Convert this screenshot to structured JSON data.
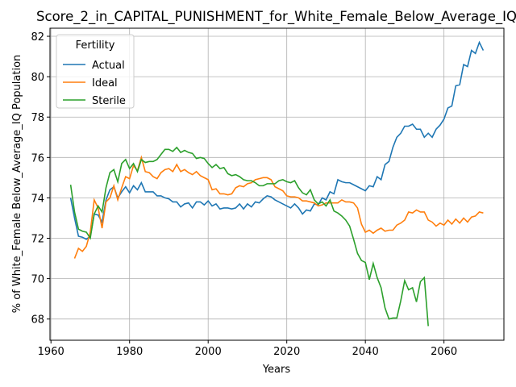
{
  "chart_data": {
    "type": "line",
    "title": "Score_2_in_CAPITAL_PUNISHMENT_for_White_Female_Below_Average_IQ",
    "xlabel": "Years",
    "ylabel": "% of White_Female Below_Average_IQ Population",
    "legend_title": "Fertility",
    "legend": "upper left",
    "grid": true,
    "xlim": [
      1959.75,
      2075.25
    ],
    "ylim": [
      66.95,
      82.4
    ],
    "xticks": [
      1960,
      1980,
      2000,
      2020,
      2040,
      2060
    ],
    "yticks": [
      68,
      70,
      72,
      74,
      76,
      78,
      80,
      82
    ],
    "x": [
      1965,
      1966,
      1967,
      1968,
      1969,
      1970,
      1971,
      1972,
      1973,
      1974,
      1975,
      1976,
      1977,
      1978,
      1979,
      1980,
      1981,
      1982,
      1983,
      1984,
      1985,
      1986,
      1987,
      1988,
      1989,
      1990,
      1991,
      1992,
      1993,
      1994,
      1995,
      1996,
      1997,
      1998,
      1999,
      2000,
      2001,
      2002,
      2003,
      2004,
      2005,
      2006,
      2007,
      2008,
      2009,
      2010,
      2011,
      2012,
      2013,
      2014,
      2015,
      2016,
      2017,
      2018,
      2019,
      2020,
      2021,
      2022,
      2023,
      2024,
      2025,
      2026,
      2027,
      2028,
      2029,
      2030,
      2031,
      2032,
      2033,
      2034,
      2035,
      2036,
      2037,
      2038,
      2039,
      2040,
      2041,
      2042,
      2043,
      2044,
      2045,
      2046,
      2047,
      2048,
      2049,
      2050,
      2051,
      2052,
      2053,
      2054,
      2055,
      2056,
      2057,
      2058,
      2059,
      2060,
      2061,
      2062,
      2063,
      2064,
      2065,
      2066,
      2067,
      2068,
      2069,
      2070
    ],
    "series": [
      {
        "name": "Actual",
        "color": "#1f77b4",
        "values": [
          74.0,
          73.0,
          72.1,
          72.05,
          71.95,
          72.1,
          73.2,
          73.15,
          72.8,
          73.9,
          74.4,
          74.55,
          74.0,
          74.3,
          74.55,
          74.25,
          74.6,
          74.4,
          74.75,
          74.3,
          74.3,
          74.3,
          74.1,
          74.1,
          74.0,
          73.95,
          73.8,
          73.8,
          73.55,
          73.7,
          73.75,
          73.5,
          73.8,
          73.8,
          73.65,
          73.85,
          73.6,
          73.7,
          73.45,
          73.5,
          73.5,
          73.45,
          73.5,
          73.7,
          73.45,
          73.7,
          73.55,
          73.8,
          73.75,
          73.95,
          74.1,
          74.05,
          73.9,
          73.8,
          73.7,
          73.6,
          73.5,
          73.7,
          73.5,
          73.2,
          73.4,
          73.35,
          73.7,
          73.65,
          74.0,
          73.9,
          74.3,
          74.2,
          74.9,
          74.8,
          74.75,
          74.75,
          74.65,
          74.55,
          74.45,
          74.35,
          74.6,
          74.55,
          75.05,
          74.9,
          75.65,
          75.8,
          76.5,
          77.0,
          77.2,
          77.55,
          77.55,
          77.65,
          77.4,
          77.4,
          77.0,
          77.2,
          77.0,
          77.4,
          77.6,
          77.9,
          78.45,
          78.55,
          79.55,
          79.6,
          80.6,
          80.5,
          81.3,
          81.15,
          81.7,
          81.3
        ]
      },
      {
        "name": "Ideal",
        "color": "#ff7f0e",
        "values": [
          null,
          71.0,
          71.5,
          71.35,
          71.6,
          72.3,
          73.9,
          73.5,
          72.5,
          73.8,
          74.0,
          74.6,
          73.9,
          74.5,
          75.05,
          74.95,
          75.6,
          75.35,
          76.0,
          75.3,
          75.25,
          75.05,
          74.95,
          75.25,
          75.4,
          75.45,
          75.3,
          75.65,
          75.3,
          75.4,
          75.25,
          75.15,
          75.3,
          75.1,
          75.0,
          74.9,
          74.4,
          74.45,
          74.2,
          74.2,
          74.15,
          74.2,
          74.5,
          74.6,
          74.55,
          74.7,
          74.75,
          74.9,
          74.95,
          75.0,
          75.0,
          74.9,
          74.55,
          74.45,
          74.35,
          74.1,
          74.05,
          74.05,
          74.0,
          73.85,
          73.85,
          73.8,
          73.75,
          73.6,
          73.65,
          73.75,
          73.75,
          73.75,
          73.75,
          73.9,
          73.8,
          73.8,
          73.75,
          73.5,
          72.7,
          72.3,
          72.4,
          72.25,
          72.4,
          72.5,
          72.35,
          72.4,
          72.4,
          72.65,
          72.75,
          72.9,
          73.3,
          73.25,
          73.4,
          73.3,
          73.3,
          72.9,
          72.8,
          72.6,
          72.75,
          72.65,
          72.9,
          72.7,
          72.95,
          72.75,
          73.0,
          72.8,
          73.05,
          73.1,
          73.3,
          73.25
        ]
      },
      {
        "name": "Sterile",
        "color": "#2ca02c",
        "values": [
          74.65,
          73.3,
          72.45,
          72.35,
          72.3,
          72.0,
          73.2,
          73.6,
          73.3,
          74.5,
          75.25,
          75.4,
          74.8,
          75.7,
          75.9,
          75.45,
          75.7,
          75.3,
          75.9,
          75.75,
          75.8,
          75.8,
          75.9,
          76.15,
          76.4,
          76.4,
          76.3,
          76.5,
          76.25,
          76.35,
          76.25,
          76.2,
          75.95,
          76.0,
          75.95,
          75.7,
          75.5,
          75.65,
          75.45,
          75.5,
          75.2,
          75.1,
          75.15,
          75.05,
          74.9,
          74.85,
          74.85,
          74.75,
          74.6,
          74.6,
          74.7,
          74.7,
          74.7,
          74.85,
          74.9,
          74.8,
          74.75,
          74.85,
          74.5,
          74.25,
          74.15,
          74.4,
          73.9,
          73.7,
          73.8,
          73.6,
          73.9,
          73.35,
          73.25,
          73.1,
          72.9,
          72.6,
          71.95,
          71.25,
          70.9,
          70.8,
          69.95,
          70.75,
          70.05,
          69.55,
          68.55,
          68.0,
          68.05,
          68.05,
          68.9,
          69.9,
          69.45,
          69.55,
          68.85,
          69.85,
          70.05,
          67.65,
          null,
          null,
          null,
          null,
          null,
          null,
          null,
          null,
          null,
          null,
          null,
          null,
          null,
          null
        ]
      }
    ]
  }
}
